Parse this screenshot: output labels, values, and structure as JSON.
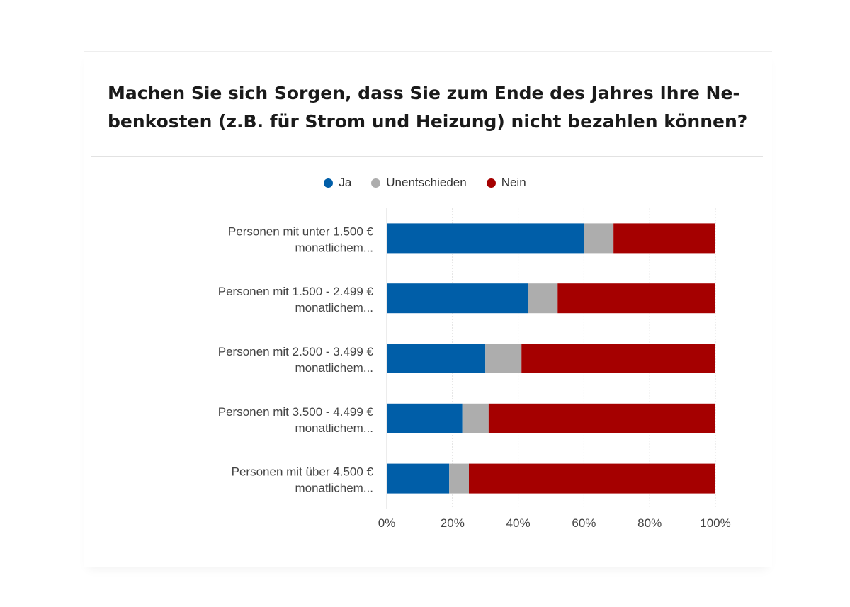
{
  "chart_data": {
    "type": "bar",
    "orientation": "horizontal",
    "stacked": true,
    "title": "Machen Sie sich Sorgen, dass Sie zum Ende des Jahres Ihre Ne-benkosten (z.B. für Strom und Heizung) nicht bezahlen können?",
    "title_lines": [
      "Machen Sie sich Sorgen, dass Sie zum Ende des Jahres Ihre Ne-",
      "benkosten (z.B. für Strom und Heizung) nicht bezahlen können?"
    ],
    "categories": [
      [
        "Personen mit unter 1.500 €",
        "monatlichem..."
      ],
      [
        "Personen mit 1.500 - 2.499 €",
        "monatlichem..."
      ],
      [
        "Personen mit 2.500 - 3.499 €",
        "monatlichem..."
      ],
      [
        "Personen mit 3.500 - 4.499 €",
        "monatlichem..."
      ],
      [
        "Personen mit über 4.500 €",
        "monatlichem..."
      ]
    ],
    "series": [
      {
        "name": "Ja",
        "color": "#005ea8",
        "values": [
          60,
          43,
          30,
          23,
          19
        ]
      },
      {
        "name": "Unentschieden",
        "color": "#adadad",
        "values": [
          9,
          9,
          11,
          8,
          6
        ]
      },
      {
        "name": "Nein",
        "color": "#a50000",
        "values": [
          31,
          48,
          59,
          69,
          75
        ]
      }
    ],
    "xlim": [
      0,
      100
    ],
    "xticks": [
      "0%",
      "20%",
      "40%",
      "60%",
      "80%",
      "100%"
    ],
    "grid": "vertical dotted",
    "legend_position": "top-center"
  }
}
